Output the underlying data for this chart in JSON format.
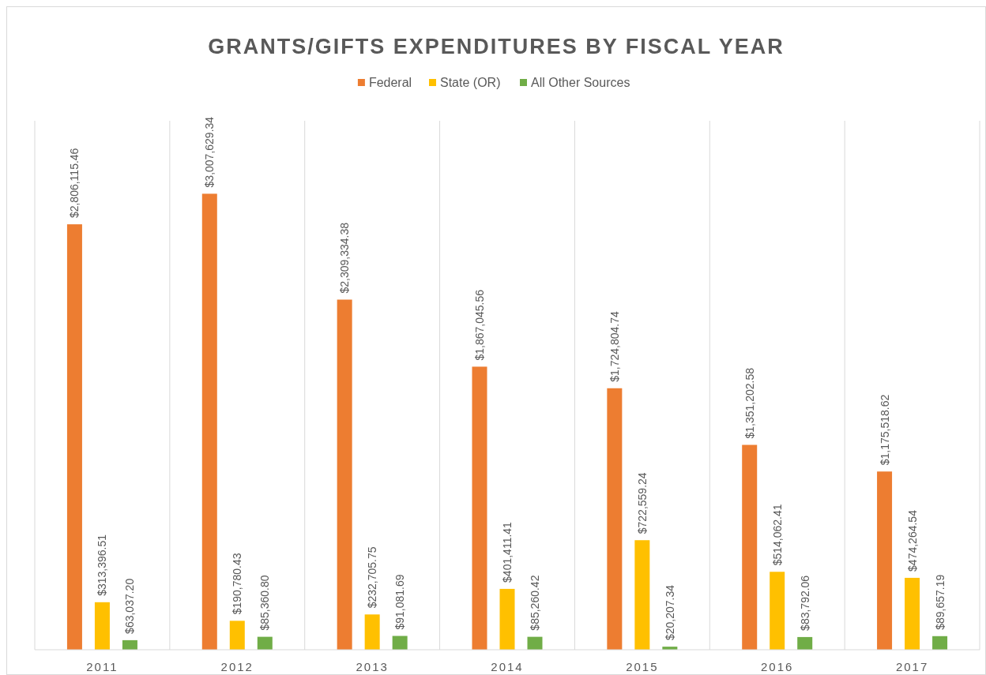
{
  "chart_data": {
    "type": "bar",
    "title": "GRANTS/GIFTS EXPENDITURES BY FISCAL YEAR",
    "categories": [
      "2011",
      "2012",
      "2013",
      "2014",
      "2015",
      "2016",
      "2017"
    ],
    "legend": "top",
    "grid": "x",
    "series": [
      {
        "name": "Federal",
        "color": "#ed7d31",
        "values": [
          2806115.46,
          3007629.34,
          2309334.38,
          1867045.56,
          1724804.74,
          1351202.58,
          1175518.62
        ],
        "value_labels": [
          "$2,806,115.46",
          "$3,007,629.34",
          "$2,309,334.38",
          "$1,867,045.56",
          "$1,724,804.74",
          "$1,351,202.58",
          "$1,175,518.62"
        ]
      },
      {
        "name": "State (OR)",
        "color": "#ffc000",
        "values": [
          313396.51,
          190780.43,
          232705.75,
          401411.41,
          722559.24,
          514062.41,
          474264.54
        ],
        "value_labels": [
          "$313,396.51",
          "$190,780.43",
          "$232,705.75",
          "$401,411.41",
          "$722,559.24",
          "$514,062.41",
          "$474,264.54"
        ]
      },
      {
        "name": "All Other Sources",
        "color": "#70ad47",
        "values": [
          63037.2,
          85360.8,
          91081.69,
          85260.42,
          20207.34,
          83792.06,
          89657.19
        ],
        "value_labels": [
          "$63,037.20",
          "$85,360.80",
          "$91,081.69",
          "$85,260.42",
          "$20,207.34",
          "$83,792.06",
          "$89,657.19"
        ]
      }
    ]
  }
}
